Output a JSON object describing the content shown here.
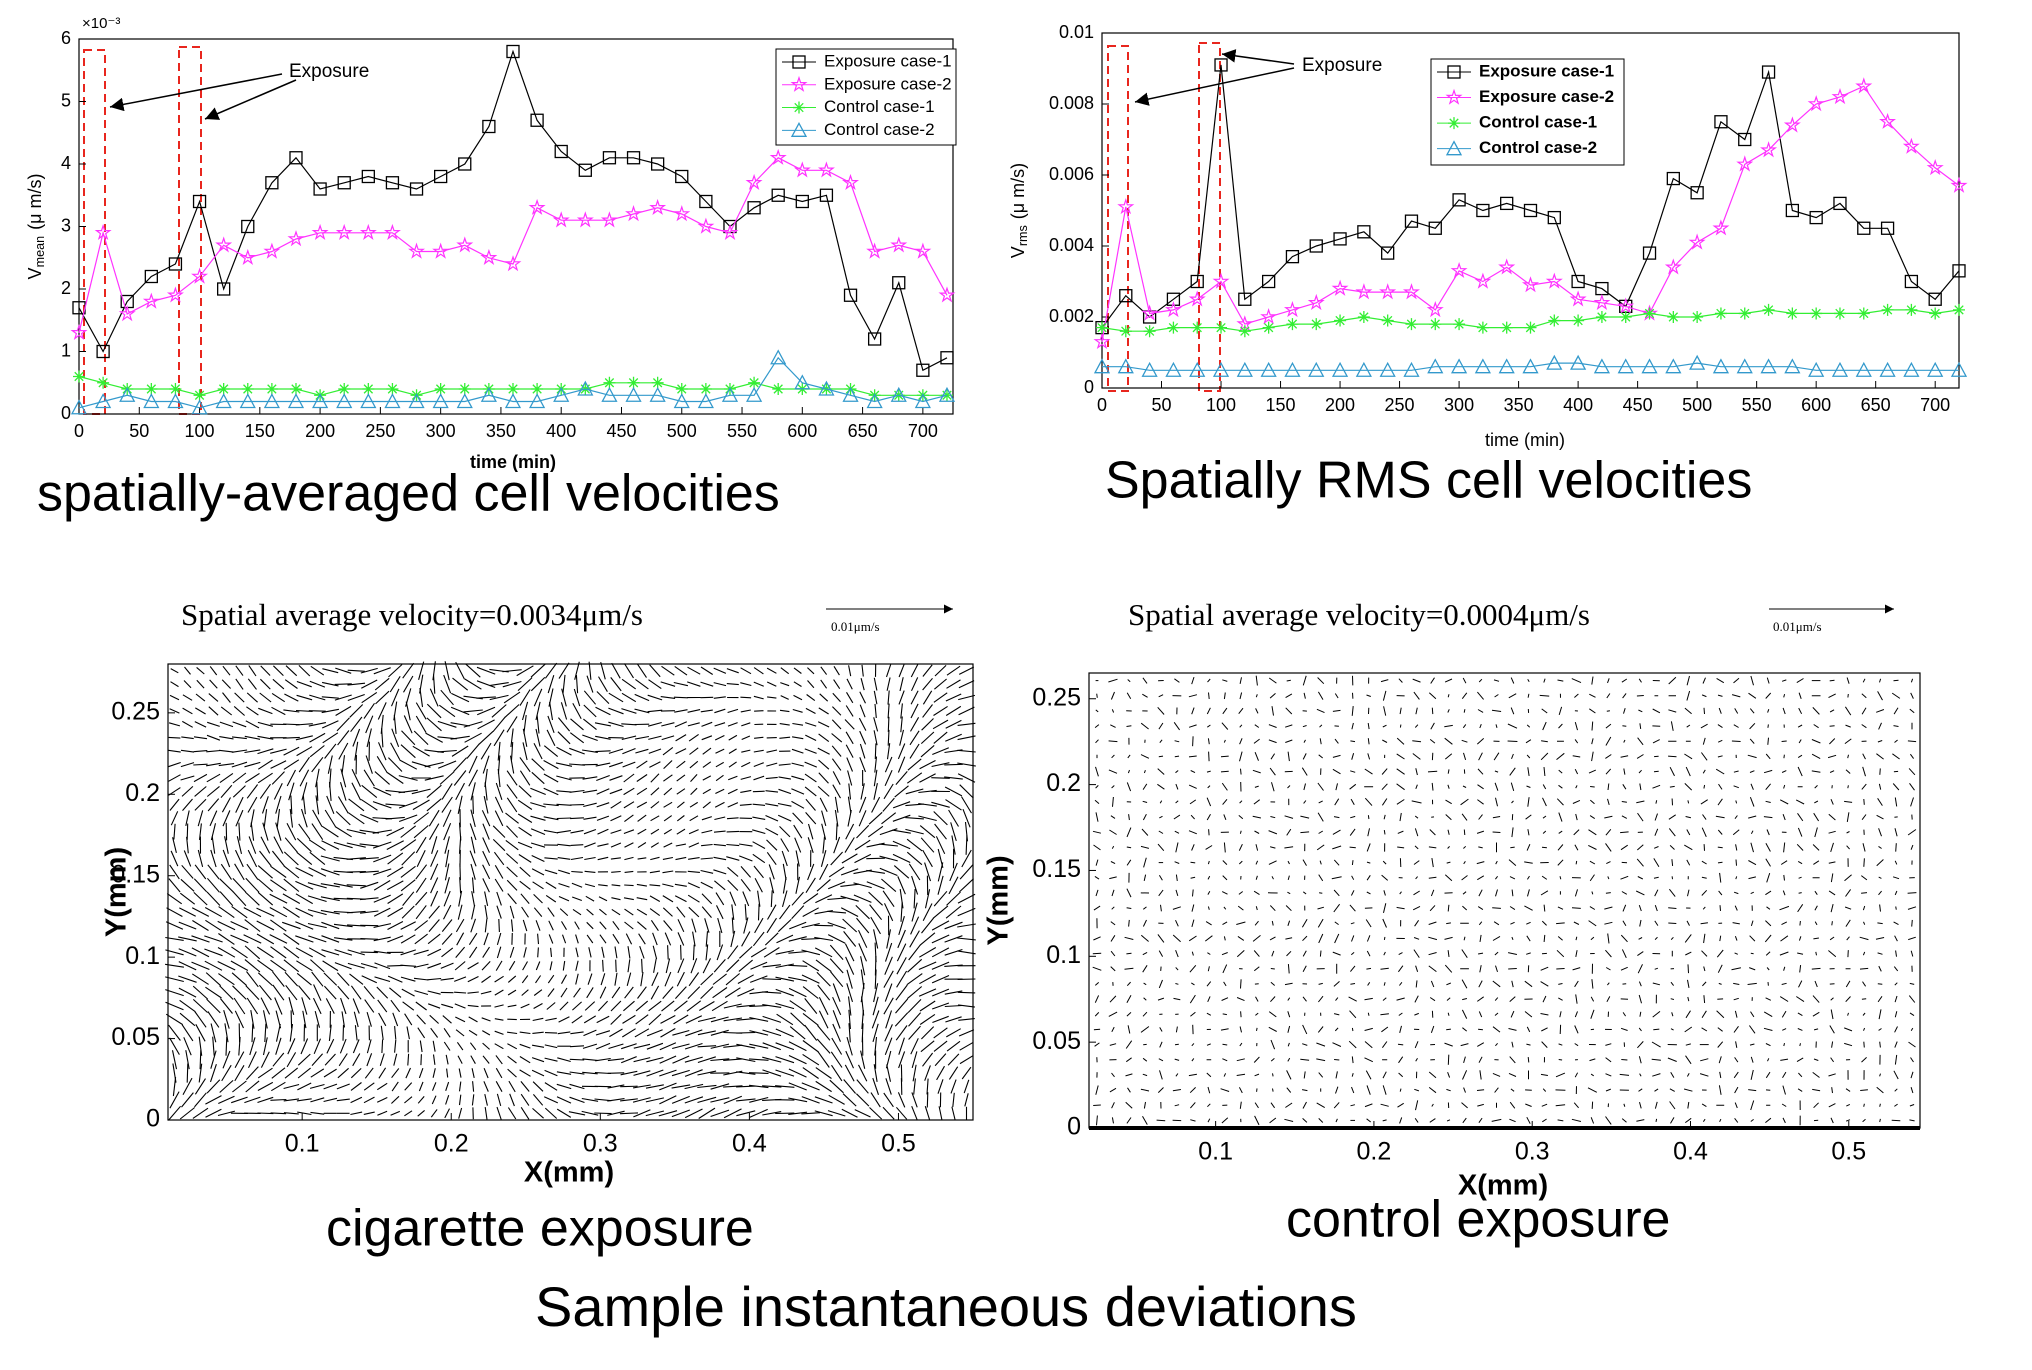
{
  "chart_data": [
    {
      "type": "line",
      "caption": "spatially-averaged cell velocities",
      "xlabel": "time (min)",
      "ylabel": {
        "main": "V",
        "sub": "mean",
        "unit": "(μ m/s)"
      },
      "y_multiplier": "×10⁻³",
      "annotation": "Exposure",
      "legend": "upper right",
      "x": [
        0,
        20,
        40,
        60,
        80,
        100,
        120,
        140,
        160,
        180,
        200,
        220,
        240,
        260,
        280,
        300,
        320,
        340,
        360,
        380,
        400,
        420,
        440,
        460,
        480,
        500,
        520,
        540,
        560,
        580,
        600,
        620,
        640,
        660,
        680,
        700,
        720
      ],
      "xlim": [
        0,
        725
      ],
      "xticks": [
        0,
        50,
        100,
        150,
        200,
        250,
        300,
        350,
        400,
        450,
        500,
        550,
        600,
        650,
        700
      ],
      "ylim": [
        0,
        6
      ],
      "yticks": [
        0,
        1,
        2,
        3,
        4,
        5,
        6
      ],
      "series": [
        {
          "name": "Exposure case-1",
          "color": "#000000",
          "marker": "square",
          "values": [
            1.7,
            1.0,
            1.8,
            2.2,
            2.4,
            3.4,
            2.0,
            3.0,
            3.7,
            4.1,
            3.6,
            3.7,
            3.8,
            3.7,
            3.6,
            3.8,
            4.0,
            4.6,
            5.8,
            4.7,
            4.2,
            3.9,
            4.1,
            4.1,
            4.0,
            3.8,
            3.4,
            3.0,
            3.3,
            3.5,
            3.4,
            3.5,
            1.9,
            1.2,
            2.1,
            0.7,
            0.9
          ]
        },
        {
          "name": "Exposure case-2",
          "color": "#ff33ff",
          "marker": "star",
          "values": [
            1.3,
            2.9,
            1.6,
            1.8,
            1.9,
            2.2,
            2.7,
            2.5,
            2.6,
            2.8,
            2.9,
            2.9,
            2.9,
            2.9,
            2.6,
            2.6,
            2.7,
            2.5,
            2.4,
            3.3,
            3.1,
            3.1,
            3.1,
            3.2,
            3.3,
            3.2,
            3.0,
            2.9,
            3.7,
            4.1,
            3.9,
            3.9,
            3.7,
            2.6,
            2.7,
            2.6,
            1.9
          ]
        },
        {
          "name": "Control case-1",
          "color": "#33ee33",
          "marker": "asterisk",
          "values": [
            0.6,
            0.5,
            0.4,
            0.4,
            0.4,
            0.3,
            0.4,
            0.4,
            0.4,
            0.4,
            0.3,
            0.4,
            0.4,
            0.4,
            0.3,
            0.4,
            0.4,
            0.4,
            0.4,
            0.4,
            0.4,
            0.4,
            0.5,
            0.5,
            0.5,
            0.4,
            0.4,
            0.4,
            0.5,
            0.4,
            0.4,
            0.4,
            0.4,
            0.3,
            0.3,
            0.3,
            0.3
          ]
        },
        {
          "name": "Control case-2",
          "color": "#3399cc",
          "marker": "triangle",
          "values": [
            0.1,
            0.2,
            0.3,
            0.2,
            0.2,
            0.1,
            0.2,
            0.2,
            0.2,
            0.2,
            0.2,
            0.2,
            0.2,
            0.2,
            0.2,
            0.2,
            0.2,
            0.3,
            0.2,
            0.2,
            0.3,
            0.4,
            0.3,
            0.3,
            0.3,
            0.2,
            0.2,
            0.3,
            0.3,
            0.9,
            0.5,
            0.4,
            0.3,
            0.2,
            0.3,
            0.2,
            0.3
          ]
        }
      ]
    },
    {
      "type": "line",
      "caption": "Spatially RMS cell velocities",
      "xlabel": "time (min)",
      "ylabel": {
        "main": "V",
        "sub": "rms",
        "unit": "(μ m/s)"
      },
      "annotation": "Exposure",
      "legend": "upper center",
      "x": [
        0,
        20,
        40,
        60,
        80,
        100,
        120,
        140,
        160,
        180,
        200,
        220,
        240,
        260,
        280,
        300,
        320,
        340,
        360,
        380,
        400,
        420,
        440,
        460,
        480,
        500,
        520,
        540,
        560,
        580,
        600,
        620,
        640,
        660,
        680,
        700,
        720
      ],
      "xlim": [
        0,
        720
      ],
      "xticks": [
        0,
        50,
        100,
        150,
        200,
        250,
        300,
        350,
        400,
        450,
        500,
        550,
        600,
        650,
        700
      ],
      "ylim": [
        0,
        0.01
      ],
      "yticks": [
        0,
        0.002,
        0.004,
        0.006,
        0.008,
        0.01
      ],
      "series": [
        {
          "name": "Exposure case-1",
          "color": "#000000",
          "marker": "square",
          "values": [
            0.0017,
            0.0026,
            0.002,
            0.0025,
            0.003,
            0.0091,
            0.0025,
            0.003,
            0.0037,
            0.004,
            0.0042,
            0.0044,
            0.0038,
            0.0047,
            0.0045,
            0.0053,
            0.005,
            0.0052,
            0.005,
            0.0048,
            0.003,
            0.0028,
            0.0023,
            0.0038,
            0.0059,
            0.0055,
            0.0075,
            0.007,
            0.0089,
            0.005,
            0.0048,
            0.0052,
            0.0045,
            0.0045,
            0.003,
            0.0025,
            0.0033
          ]
        },
        {
          "name": "Exposure case-2",
          "color": "#ff33ff",
          "marker": "star",
          "values": [
            0.0013,
            0.0051,
            0.0021,
            0.0022,
            0.0025,
            0.003,
            0.0018,
            0.002,
            0.0022,
            0.0024,
            0.0028,
            0.0027,
            0.0027,
            0.0027,
            0.0022,
            0.0033,
            0.003,
            0.0034,
            0.0029,
            0.003,
            0.0025,
            0.0024,
            0.0023,
            0.0021,
            0.0034,
            0.0041,
            0.0045,
            0.0063,
            0.0067,
            0.0074,
            0.008,
            0.0082,
            0.0085,
            0.0075,
            0.0068,
            0.0062,
            0.0057
          ]
        },
        {
          "name": "Control case-1",
          "color": "#33ee33",
          "marker": "asterisk",
          "values": [
            0.0017,
            0.0016,
            0.0016,
            0.0017,
            0.0017,
            0.0017,
            0.0016,
            0.0017,
            0.0018,
            0.0018,
            0.0019,
            0.002,
            0.0019,
            0.0018,
            0.0018,
            0.0018,
            0.0017,
            0.0017,
            0.0017,
            0.0019,
            0.0019,
            0.002,
            0.002,
            0.0021,
            0.002,
            0.002,
            0.0021,
            0.0021,
            0.0022,
            0.0021,
            0.0021,
            0.0021,
            0.0021,
            0.0022,
            0.0022,
            0.0021,
            0.0022
          ]
        },
        {
          "name": "Control case-2",
          "color": "#3399cc",
          "marker": "triangle",
          "values": [
            0.0006,
            0.0006,
            0.0005,
            0.0005,
            0.0005,
            0.0005,
            0.0005,
            0.0005,
            0.0005,
            0.0005,
            0.0005,
            0.0005,
            0.0005,
            0.0005,
            0.0006,
            0.0006,
            0.0006,
            0.0006,
            0.0006,
            0.0007,
            0.0007,
            0.0006,
            0.0006,
            0.0006,
            0.0006,
            0.0007,
            0.0006,
            0.0006,
            0.0006,
            0.0006,
            0.0005,
            0.0005,
            0.0005,
            0.0005,
            0.0005,
            0.0005,
            0.0005
          ]
        }
      ]
    },
    {
      "type": "quiver",
      "title": "Spatial average velocity=0.0034μm/s",
      "scale_label": "0.01μm/s",
      "caption": "cigarette exposure",
      "xlabel": "X(mm)",
      "ylabel": "Y(mm)",
      "strength": "strong",
      "xlim": [
        0.01,
        0.55
      ],
      "xticks": [
        0.1,
        0.2,
        0.3,
        0.4,
        0.5
      ],
      "ylim": [
        0,
        0.28
      ],
      "yticks": [
        0,
        0.05,
        0.1,
        0.15,
        0.2,
        0.25
      ]
    },
    {
      "type": "quiver",
      "title": "Spatial average velocity=0.0004μm/s",
      "scale_label": "0.01μm/s",
      "caption": "control exposure",
      "xlabel": "X(mm)",
      "ylabel": "Y(mm)",
      "strength": "weak",
      "xlim": [
        0.02,
        0.545
      ],
      "xticks": [
        0.1,
        0.2,
        0.3,
        0.4,
        0.5
      ],
      "ylim": [
        0,
        0.265
      ],
      "yticks": [
        0,
        0.05,
        0.1,
        0.15,
        0.2,
        0.25
      ]
    }
  ],
  "figure_caption": "Sample instantaneous deviations"
}
